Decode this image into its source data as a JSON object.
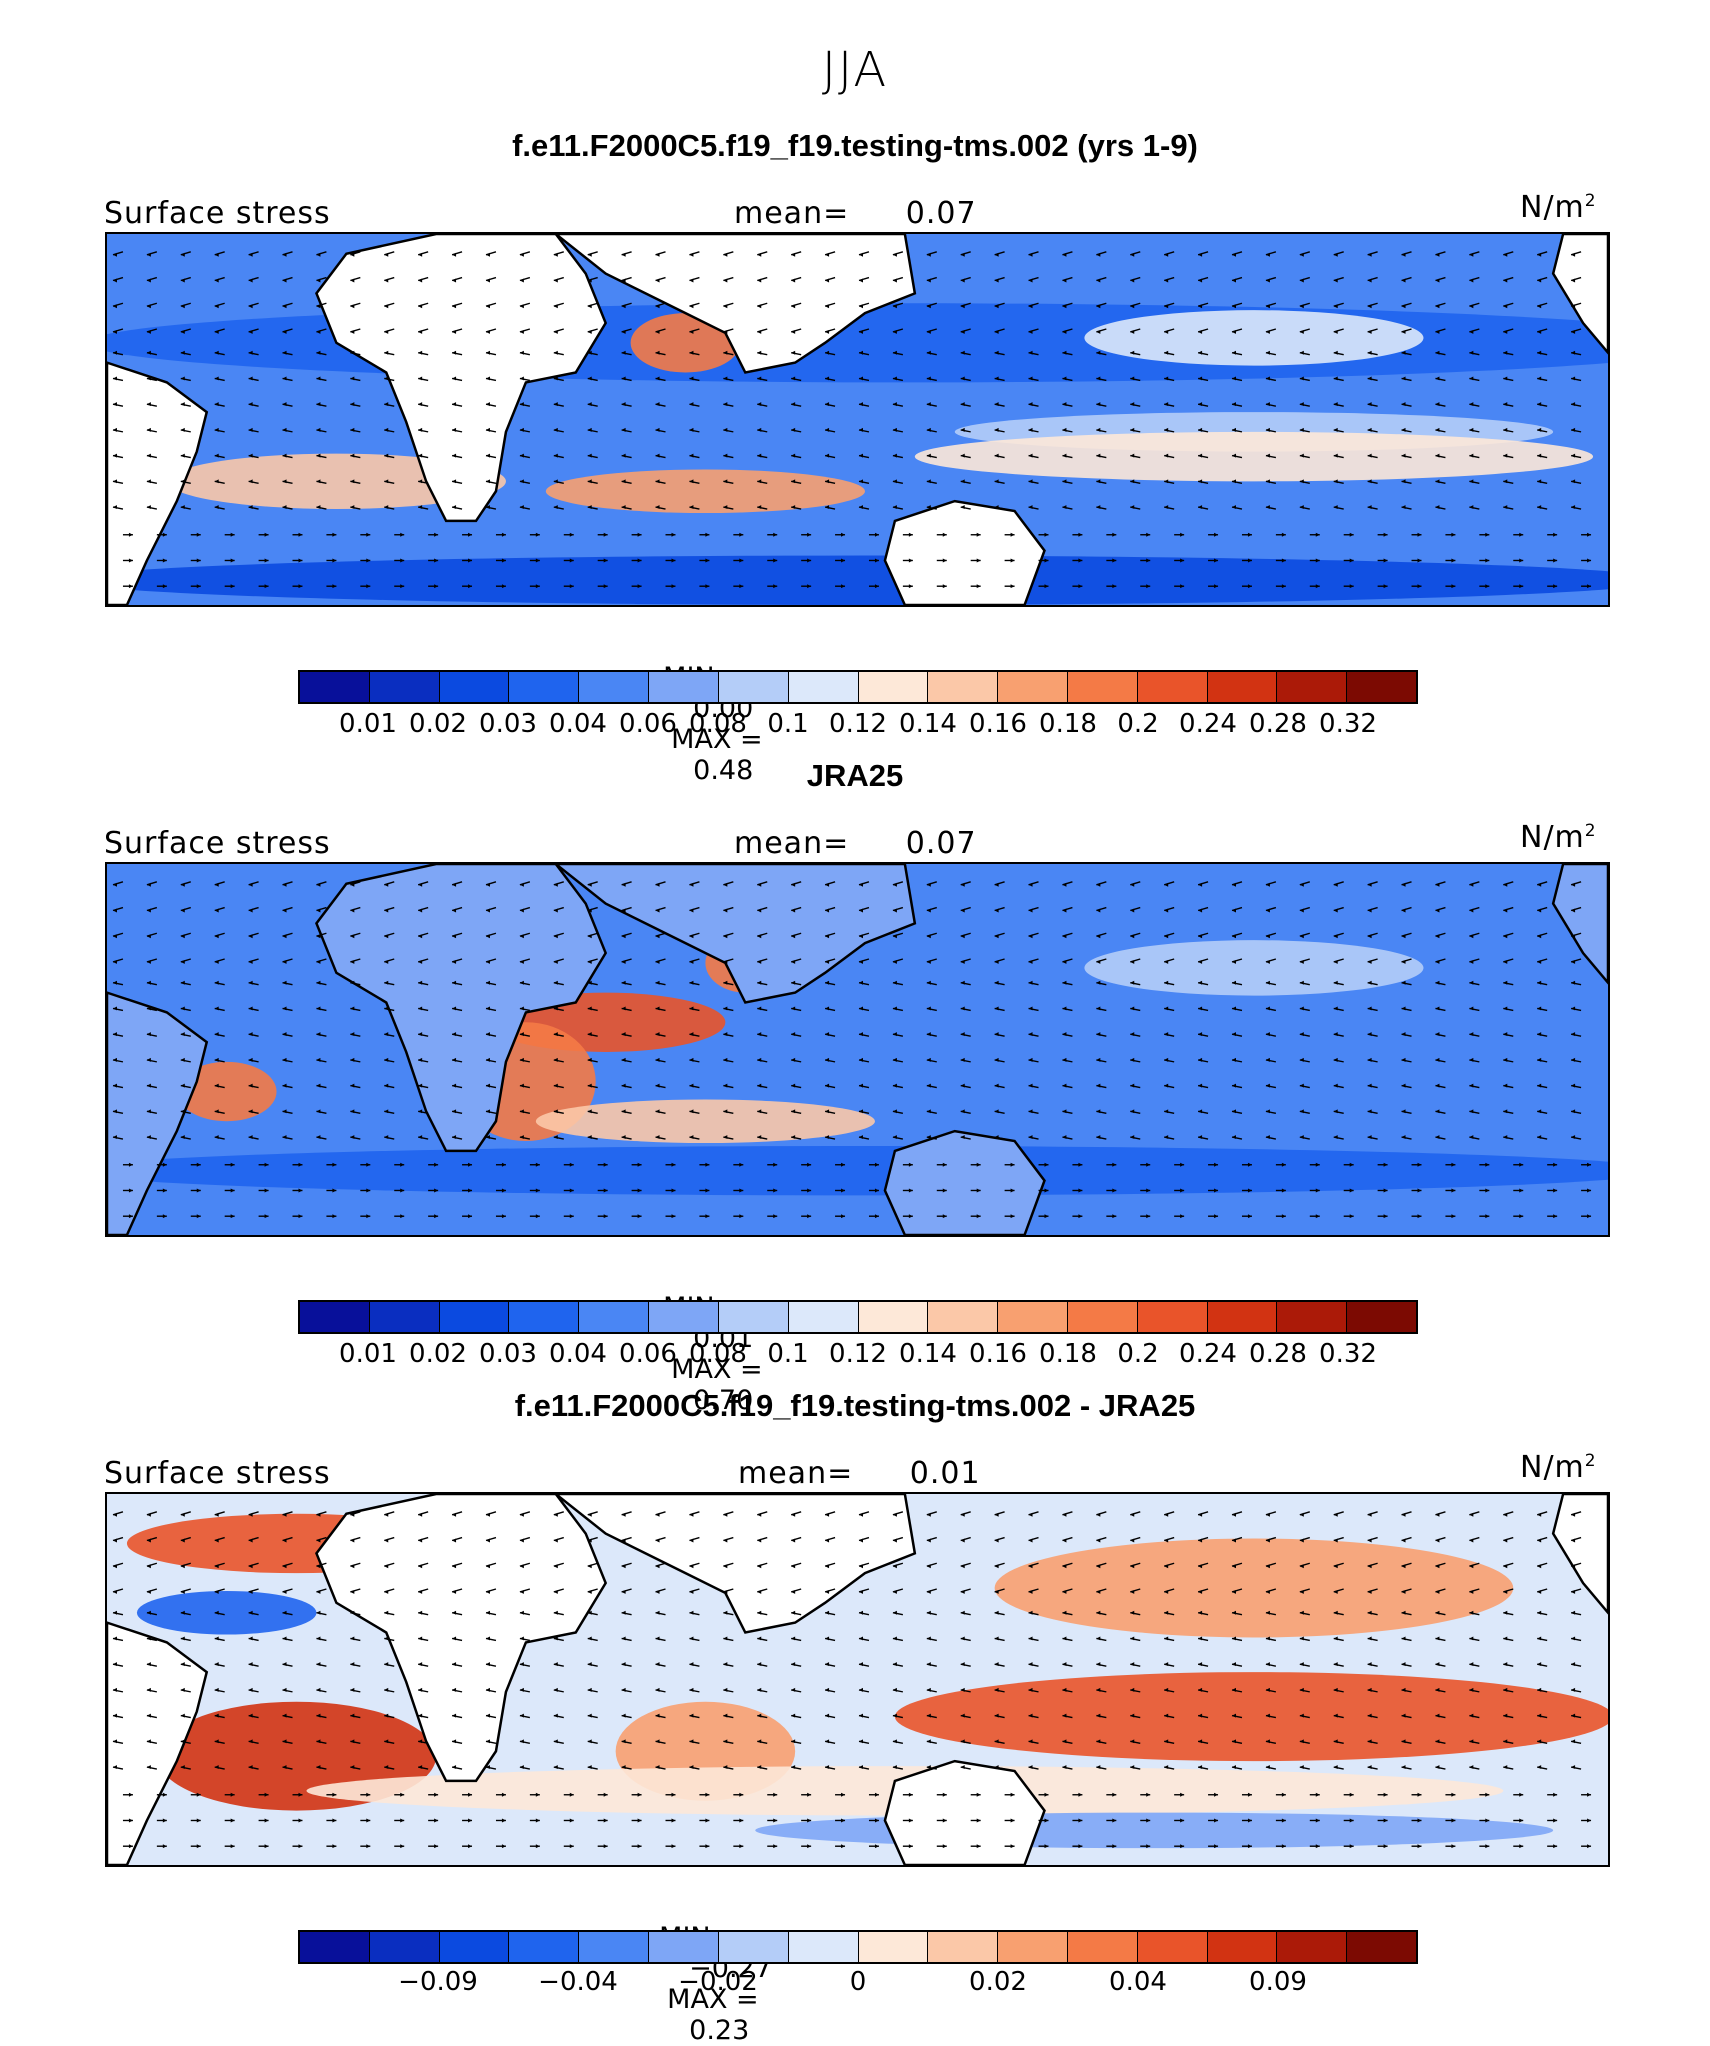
{
  "main_title": "JJA",
  "colorbar_colors": [
    "#08109a",
    "#0a2ec0",
    "#0b4ae0",
    "#1f64ee",
    "#4a86f4",
    "#7ea6f6",
    "#b4cdf8",
    "#dce8fa",
    "#fde8d8",
    "#fbc8a8",
    "#f8a070",
    "#f47a46",
    "#e9542a",
    "#d23312",
    "#ab1a08",
    "#7c0a02"
  ],
  "map_colors": {
    "ocean_blue": "#1f64ee",
    "ocean_light": "#b4cdf8",
    "warm": "#f47a46",
    "land": "#ffffff",
    "coast": "#000000"
  },
  "panels": [
    {
      "title": "f.e11.F2000C5.f19_f19.testing-tms.002 (yrs 1-9)",
      "left_label": "Surface stress",
      "mean_label": "mean=",
      "mean_value": "0.07",
      "units": "N/m",
      "units_sup": "2",
      "min_label": "MIN =",
      "min_value": "0.00",
      "max_label": "MAX =",
      "max_value": "0.48",
      "tick_labels": [
        "0.01",
        "0.02",
        "0.03",
        "0.04",
        "0.06",
        "0.08",
        "0.1",
        "0.12",
        "0.14",
        "0.16",
        "0.18",
        "0.2",
        "0.24",
        "0.28",
        "0.32"
      ]
    },
    {
      "title": "JRA25",
      "left_label": "Surface stress",
      "mean_label": "mean=",
      "mean_value": "0.07",
      "units": "N/m",
      "units_sup": "2",
      "min_label": "MIN =",
      "min_value": "0.01",
      "max_label": "MAX =",
      "max_value": "0.70",
      "tick_labels": [
        "0.01",
        "0.02",
        "0.03",
        "0.04",
        "0.06",
        "0.08",
        "0.1",
        "0.12",
        "0.14",
        "0.16",
        "0.18",
        "0.2",
        "0.24",
        "0.28",
        "0.32"
      ]
    },
    {
      "title": "f.e11.F2000C5.f19_f19.testing-tms.002 - JRA25",
      "left_label": "Surface stress",
      "mean_label": "mean=",
      "mean_value": "0.01",
      "units": "N/m",
      "units_sup": "2",
      "min_label": "MIN =",
      "min_value": "−0.27",
      "max_label": "MAX =",
      "max_value": "0.23",
      "tick_labels": [
        "−0.09",
        "−0.04",
        "−0.02",
        "0",
        "0.02",
        "0.04",
        "0.09"
      ]
    }
  ]
}
